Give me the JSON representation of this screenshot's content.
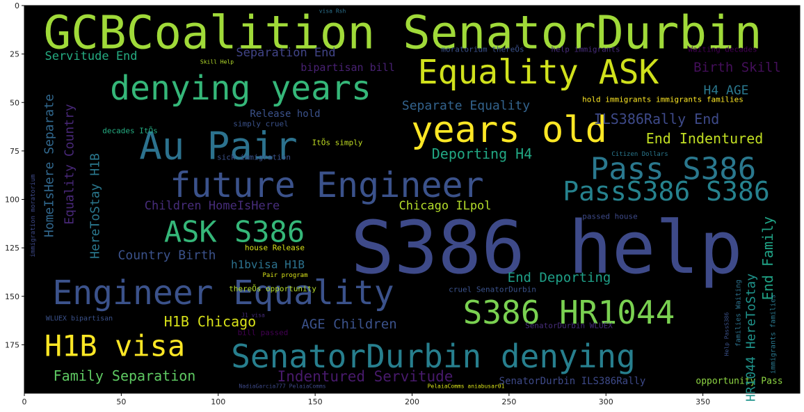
{
  "chart_data": {
    "type": "image",
    "xlim": [
      0,
      400
    ],
    "ylim": [
      200,
      0
    ],
    "x_ticks": [
      "0",
      "50",
      "100",
      "150",
      "200",
      "250",
      "300",
      "350"
    ],
    "y_ticks": [
      "0",
      "25",
      "50",
      "75",
      "100",
      "125",
      "150",
      "175"
    ],
    "palette": {
      "background": "#000000",
      "purple": "#46337e",
      "indigo": "#3b528b",
      "blue": "#31688e",
      "teal": "#26828e",
      "green": "#1f9e89",
      "seagreen": "#35b779",
      "lime": "#6ece58",
      "yellowgreen": "#b5de2b",
      "yellow": "#fde725"
    },
    "words": [
      {
        "text": "GCBCoalition SenatorDurbin",
        "color": "#a0da39"
      },
      {
        "text": "S386 help",
        "color": "#3e4a89"
      },
      {
        "text": "Equality ASK",
        "color": "#d0e11c"
      },
      {
        "text": "denying years",
        "color": "#35b779"
      },
      {
        "text": "years old",
        "color": "#fde725"
      },
      {
        "text": "Au Pair",
        "color": "#2c728e"
      },
      {
        "text": "future Engineer",
        "color": "#3b528b"
      },
      {
        "text": "Pass S386",
        "color": "#2a788e"
      },
      {
        "text": "PassS386 S386",
        "color": "#26828e"
      },
      {
        "text": "ASK S386",
        "color": "#35b779"
      },
      {
        "text": "Engineer Equality",
        "color": "#3b528b"
      },
      {
        "text": "S386 HR1044",
        "color": "#7ad151"
      },
      {
        "text": "SenatorDurbin denying",
        "color": "#277f8e"
      },
      {
        "text": "H1B visa",
        "color": "#fde725"
      },
      {
        "text": "Servitude End",
        "color": "#25ac82"
      },
      {
        "text": "Separation End",
        "color": "#414487"
      },
      {
        "text": "bipartisan bill",
        "color": "#482173"
      },
      {
        "text": "Birth Skill",
        "color": "#440f5a"
      },
      {
        "text": "H4 AGE",
        "color": "#2a788e"
      },
      {
        "text": "Separate Equality",
        "color": "#33638d"
      },
      {
        "text": "ILS386Rally End",
        "color": "#3e4a89"
      },
      {
        "text": "End Indentured",
        "color": "#c2df23"
      },
      {
        "text": "Deporting H4",
        "color": "#22a884"
      },
      {
        "text": "Release hold",
        "color": "#3b528b"
      },
      {
        "text": "Children HomeIsHere",
        "color": "#472d7b"
      },
      {
        "text": "Chicago ILpol",
        "color": "#b5de2b"
      },
      {
        "text": "Country Birth",
        "color": "#3b528b"
      },
      {
        "text": "h1bvisa H1B",
        "color": "#2c728e"
      },
      {
        "text": "End Deporting",
        "color": "#1fa088"
      },
      {
        "text": "H1B Chicago",
        "color": "#d8e219"
      },
      {
        "text": "AGE Children",
        "color": "#3b528b"
      },
      {
        "text": "Family Separation",
        "color": "#5ec962"
      },
      {
        "text": "Indentured Servitude",
        "color": "#481a6c"
      },
      {
        "text": "SenatorDurbin ILS386Rally",
        "color": "#3e4a89"
      },
      {
        "text": "opportunity Pass",
        "color": "#8fd744"
      },
      {
        "text": "End Family",
        "color": "#20a386"
      },
      {
        "text": "HR1044 HereToStay",
        "color": "#1f948c"
      },
      {
        "text": "HomeIsHere Separate",
        "color": "#31688e"
      },
      {
        "text": "Equality Country",
        "color": "#482878"
      },
      {
        "text": "HereToStay H1B",
        "color": "#2a788e"
      },
      {
        "text": "moratorium thereÕs",
        "color": "#3b528b"
      },
      {
        "text": "help immigrants",
        "color": "#472d7b"
      },
      {
        "text": "Waiting decades",
        "color": "#440154"
      },
      {
        "text": "hold immigrants immigrants families",
        "color": "#fde725"
      },
      {
        "text": "decades ItÕs",
        "color": "#25ac82"
      },
      {
        "text": "simply cruel",
        "color": "#3b528b"
      },
      {
        "text": "ItÕs simply",
        "color": "#c2df23"
      },
      {
        "text": "sick immigration",
        "color": "#3b528b"
      },
      {
        "text": "thereÕs opportunity",
        "color": "#b5de2b"
      },
      {
        "text": "house Release",
        "color": "#d8e219"
      },
      {
        "text": "passed house",
        "color": "#3e4a89"
      },
      {
        "text": "cruel SenatorDurbin",
        "color": "#3b528b"
      },
      {
        "text": "SenatorDurbin WLUEX",
        "color": "#472d7b"
      },
      {
        "text": "bill passed",
        "color": "#440154"
      },
      {
        "text": "WLUEX bipartisan",
        "color": "#3b528b"
      },
      {
        "text": "Pair program",
        "color": "#d8e219"
      },
      {
        "text": "Citizen Dollars",
        "color": "#2a788e"
      },
      {
        "text": "Skill Help",
        "color": "#b5de2b"
      },
      {
        "text": "visa Rsh",
        "color": "#2c728e"
      },
      {
        "text": "J1 visa",
        "color": "#472d7b"
      },
      {
        "text": "PelaiaComms aniabusar01",
        "color": "#d8e219"
      },
      {
        "text": "NadiaGarcia777 PelaiaComms",
        "color": "#3e4a89"
      },
      {
        "text": "immigration moratorium",
        "color": "#3e4a89"
      },
      {
        "text": "immigrants families",
        "color": "#2a788e"
      },
      {
        "text": "families Waiting",
        "color": "#2c728e"
      },
      {
        "text": "Help PassS386",
        "color": "#3b528b"
      }
    ]
  }
}
